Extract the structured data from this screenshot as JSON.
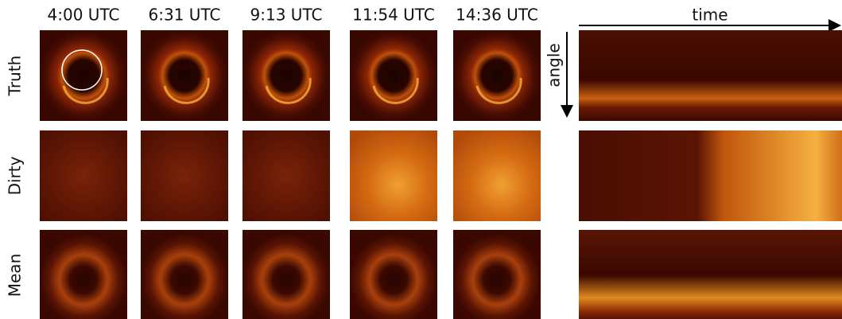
{
  "columns": [
    "4:00 UTC",
    "6:31 UTC",
    "9:13 UTC",
    "11:54 UTC",
    "14:36 UTC"
  ],
  "rows": [
    "Truth",
    "Dirty",
    "Mean"
  ],
  "axes": {
    "x_label": "time",
    "y_label": "angle"
  }
}
